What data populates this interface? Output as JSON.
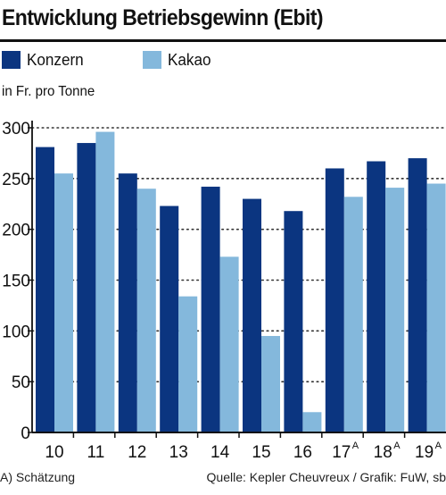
{
  "header": {
    "title": "Entwicklung Betriebsgewinn (Ebit)"
  },
  "legend": [
    {
      "label": "Konzern",
      "color": "#0b3580"
    },
    {
      "label": "Kakao",
      "color": "#84b8dc"
    }
  ],
  "footer": {
    "note": "A) Schätzung",
    "source": "Quelle: Kepler Cheuvreux / Grafik: FuW, sb"
  },
  "chart_data": {
    "type": "bar",
    "ylabel": "in Fr. pro Tonne",
    "ylim": [
      0,
      300
    ],
    "yticks": [
      0,
      50,
      100,
      150,
      200,
      250,
      300
    ],
    "grid": true,
    "categories": [
      {
        "label": "10",
        "sup": ""
      },
      {
        "label": "11",
        "sup": ""
      },
      {
        "label": "12",
        "sup": ""
      },
      {
        "label": "13",
        "sup": ""
      },
      {
        "label": "14",
        "sup": ""
      },
      {
        "label": "15",
        "sup": ""
      },
      {
        "label": "16",
        "sup": ""
      },
      {
        "label": "17",
        "sup": "A"
      },
      {
        "label": "18",
        "sup": "A"
      },
      {
        "label": "19",
        "sup": "A"
      }
    ],
    "series": [
      {
        "name": "Konzern",
        "color": "#0b3580",
        "values": [
          281,
          285,
          255,
          223,
          242,
          230,
          218,
          260,
          267,
          270
        ]
      },
      {
        "name": "Kakao",
        "color": "#84b8dc",
        "values": [
          255,
          296,
          240,
          134,
          173,
          95,
          20,
          232,
          241,
          245
        ]
      }
    ]
  }
}
